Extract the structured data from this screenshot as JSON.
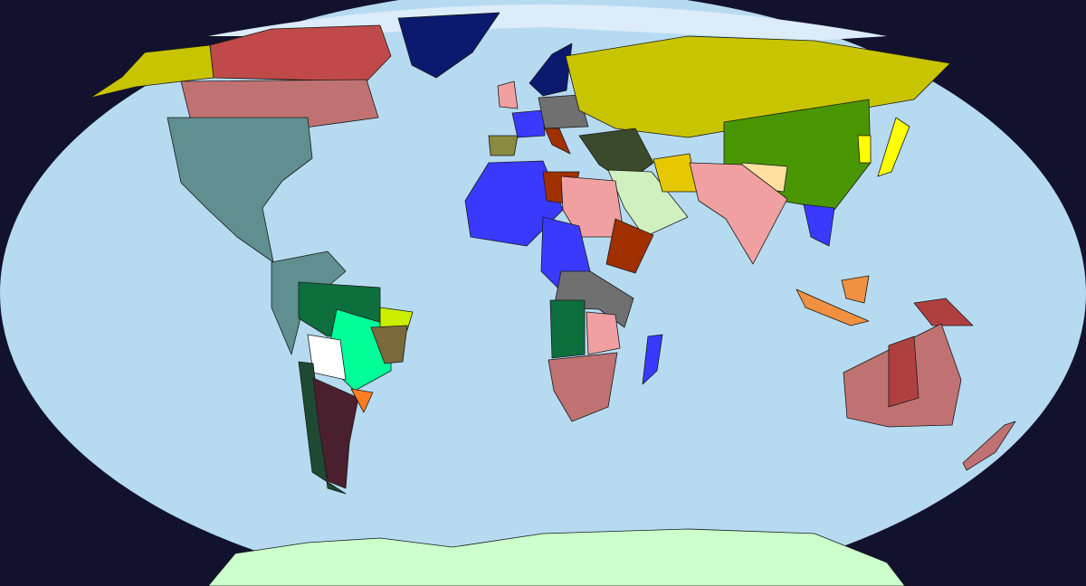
{
  "colors": {
    "background": "#12122e",
    "ocean": "#b6dbf1",
    "ice": "#dcecf8",
    "antarctica": "#ccffcc",
    "olive_yellow": "#c8c400",
    "canada_red": "#c04a4a",
    "rose": "#c07272",
    "teal_gray": "#5f8f8f",
    "dark_green": "#0d6e3e",
    "bright_green": "#00ff99",
    "lime": "#ccee00",
    "brown_olive": "#7a6a3a",
    "white": "#ffffff",
    "maroon": "#4a1f2e",
    "chile_green": "#1e4a33",
    "orange": "#ff7f20",
    "navy": "#0b1a6e",
    "china_green": "#4a9600",
    "yellow": "#ffff00",
    "gold": "#e6c800",
    "pink": "#f0a0a0",
    "peach": "#ffe0a0",
    "blue": "#3a3aff",
    "indonesia_orange": "#f09040",
    "dark_red": "#b04040",
    "gray": "#707070",
    "rust": "#a03000",
    "dark_olive": "#3a4a2a",
    "spain_olive": "#8a8a40",
    "light_green": "#d0f0c0"
  }
}
